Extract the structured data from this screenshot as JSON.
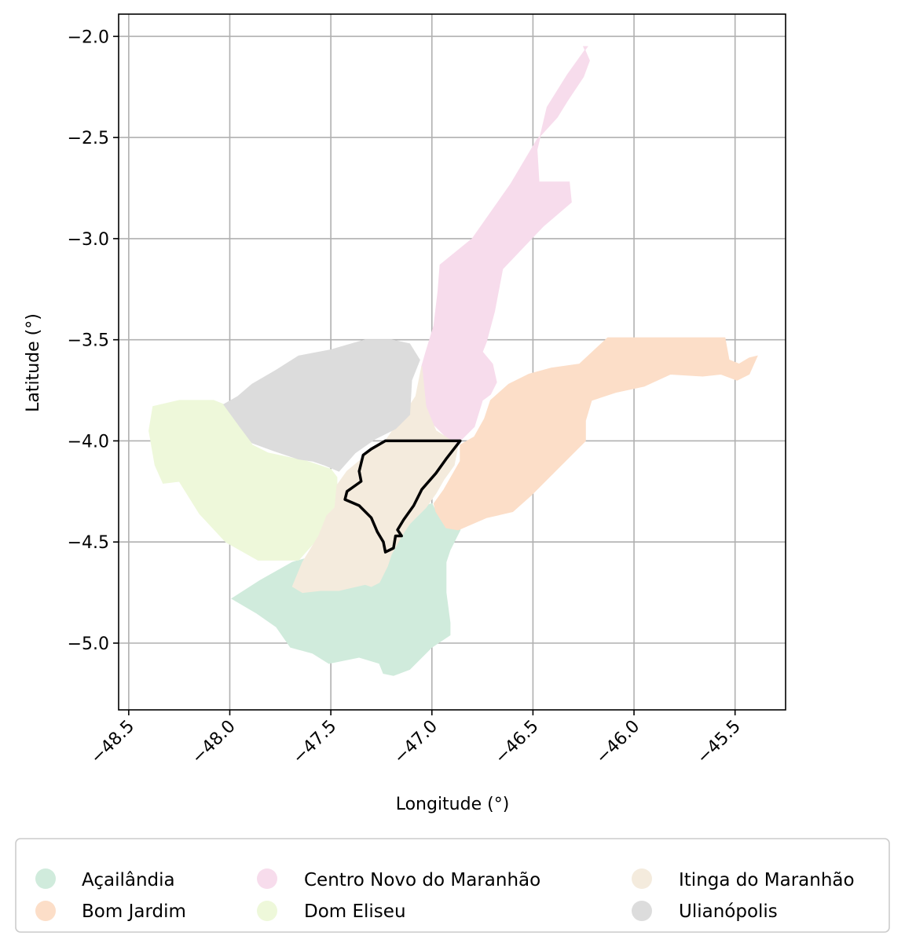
{
  "map": {
    "xlabel": "Longitude (°)",
    "ylabel": "Latitude (°)",
    "xlim": [
      -48.55,
      -45.25
    ],
    "ylim": [
      -5.33,
      -1.89
    ],
    "xticks": [
      -48.5,
      -48.0,
      -47.5,
      -47.0,
      -46.5,
      -46.0,
      -45.5
    ],
    "yticks": [
      -2.0,
      -2.5,
      -3.0,
      -3.5,
      -4.0,
      -4.5,
      -5.0
    ],
    "xtick_labels": [
      "−48.5",
      "−48.0",
      "−47.5",
      "−47.0",
      "−46.5",
      "−46.0",
      "−45.5"
    ],
    "ytick_labels": [
      "−2.0",
      "−2.5",
      "−3.0",
      "−3.5",
      "−4.0",
      "−4.5",
      "−5.0"
    ],
    "grid": true,
    "legend_placement": "bottom-center, 3 columns",
    "highlight_outline_color": "#000000",
    "regions": [
      {
        "name": "Açailândia",
        "color": "#d0ebdc",
        "polygon": [
          [
            -47.99,
            -4.78
          ],
          [
            -47.85,
            -4.69
          ],
          [
            -47.69,
            -4.6
          ],
          [
            -47.62,
            -4.58
          ],
          [
            -47.55,
            -4.56
          ],
          [
            -47.52,
            -4.63
          ],
          [
            -47.47,
            -4.65
          ],
          [
            -47.42,
            -4.64
          ],
          [
            -47.35,
            -4.65
          ],
          [
            -47.26,
            -4.7
          ],
          [
            -47.22,
            -4.58
          ],
          [
            -47.2,
            -4.53
          ],
          [
            -47.15,
            -4.47
          ],
          [
            -47.11,
            -4.41
          ],
          [
            -47.06,
            -4.34
          ],
          [
            -47.03,
            -4.32
          ],
          [
            -47.0,
            -4.31
          ],
          [
            -46.98,
            -4.35
          ],
          [
            -46.94,
            -4.41
          ],
          [
            -46.88,
            -4.43
          ],
          [
            -46.86,
            -4.44
          ],
          [
            -46.88,
            -4.48
          ],
          [
            -46.91,
            -4.54
          ],
          [
            -46.93,
            -4.6
          ],
          [
            -46.93,
            -4.75
          ],
          [
            -46.91,
            -4.9
          ],
          [
            -46.91,
            -4.96
          ],
          [
            -47.0,
            -5.02
          ],
          [
            -47.11,
            -5.13
          ],
          [
            -47.19,
            -5.16
          ],
          [
            -47.24,
            -5.15
          ],
          [
            -47.26,
            -5.1
          ],
          [
            -47.36,
            -5.07
          ],
          [
            -47.51,
            -5.1
          ],
          [
            -47.59,
            -5.05
          ],
          [
            -47.7,
            -5.02
          ],
          [
            -47.77,
            -4.92
          ],
          [
            -47.87,
            -4.85
          ]
        ]
      },
      {
        "name": "Bom Jardim",
        "color": "#fcdec8",
        "polygon": [
          [
            -46.86,
            -4.02
          ],
          [
            -46.79,
            -3.98
          ],
          [
            -46.74,
            -3.89
          ],
          [
            -46.71,
            -3.8
          ],
          [
            -46.62,
            -3.72
          ],
          [
            -46.52,
            -3.67
          ],
          [
            -46.41,
            -3.64
          ],
          [
            -46.27,
            -3.62
          ],
          [
            -46.13,
            -3.49
          ],
          [
            -45.55,
            -3.49
          ],
          [
            -45.53,
            -3.6
          ],
          [
            -45.48,
            -3.62
          ],
          [
            -45.43,
            -3.59
          ],
          [
            -45.39,
            -3.58
          ],
          [
            -45.43,
            -3.67
          ],
          [
            -45.49,
            -3.7
          ],
          [
            -45.57,
            -3.67
          ],
          [
            -45.66,
            -3.68
          ],
          [
            -45.82,
            -3.67
          ],
          [
            -45.95,
            -3.73
          ],
          [
            -46.09,
            -3.76
          ],
          [
            -46.21,
            -3.8
          ],
          [
            -46.24,
            -3.9
          ],
          [
            -46.24,
            -4.0
          ],
          [
            -46.33,
            -4.09
          ],
          [
            -46.42,
            -4.18
          ],
          [
            -46.51,
            -4.27
          ],
          [
            -46.6,
            -4.35
          ],
          [
            -46.73,
            -4.38
          ],
          [
            -46.87,
            -4.44
          ],
          [
            -46.93,
            -4.43
          ],
          [
            -46.98,
            -4.35
          ],
          [
            -46.99,
            -4.31
          ],
          [
            -46.94,
            -4.24
          ],
          [
            -46.9,
            -4.17
          ],
          [
            -46.86,
            -4.1
          ]
        ]
      },
      {
        "name": "Centro Novo do Maranhão",
        "color": "#f7dcec",
        "polygon": [
          [
            -46.23,
            -2.05
          ],
          [
            -46.33,
            -2.19
          ],
          [
            -46.43,
            -2.35
          ],
          [
            -46.48,
            -2.56
          ],
          [
            -46.47,
            -2.72
          ],
          [
            -46.32,
            -2.72
          ],
          [
            -46.31,
            -2.82
          ],
          [
            -46.45,
            -2.94
          ],
          [
            -46.65,
            -3.15
          ],
          [
            -46.69,
            -3.36
          ],
          [
            -46.73,
            -3.51
          ],
          [
            -46.75,
            -3.56
          ],
          [
            -46.7,
            -3.62
          ],
          [
            -46.68,
            -3.71
          ],
          [
            -46.71,
            -3.77
          ],
          [
            -46.75,
            -3.8
          ],
          [
            -46.79,
            -3.93
          ],
          [
            -46.86,
            -4.0
          ],
          [
            -46.89,
            -4.02
          ],
          [
            -47.0,
            -3.91
          ],
          [
            -47.02,
            -3.86
          ],
          [
            -47.05,
            -3.75
          ],
          [
            -47.05,
            -3.63
          ],
          [
            -47.03,
            -3.56
          ],
          [
            -46.99,
            -3.43
          ],
          [
            -46.97,
            -3.26
          ],
          [
            -46.96,
            -3.13
          ],
          [
            -46.8,
            -3.0
          ],
          [
            -46.61,
            -2.73
          ],
          [
            -46.48,
            -2.51
          ],
          [
            -46.38,
            -2.4
          ],
          [
            -46.33,
            -2.32
          ],
          [
            -46.25,
            -2.2
          ],
          [
            -46.22,
            -2.12
          ],
          [
            -46.25,
            -2.05
          ]
        ]
      },
      {
        "name": "Dom Eliseu",
        "color": "#eef8da",
        "polygon": [
          [
            -48.38,
            -3.83
          ],
          [
            -48.4,
            -3.95
          ],
          [
            -48.37,
            -4.12
          ],
          [
            -48.33,
            -4.21
          ],
          [
            -48.25,
            -4.2
          ],
          [
            -48.15,
            -4.36
          ],
          [
            -48.02,
            -4.5
          ],
          [
            -47.86,
            -4.59
          ],
          [
            -47.76,
            -4.59
          ],
          [
            -47.66,
            -4.59
          ],
          [
            -47.58,
            -4.5
          ],
          [
            -47.53,
            -4.43
          ],
          [
            -47.47,
            -4.34
          ],
          [
            -47.47,
            -4.18
          ],
          [
            -47.5,
            -4.14
          ],
          [
            -47.62,
            -4.1
          ],
          [
            -47.81,
            -4.06
          ],
          [
            -47.89,
            -4.02
          ],
          [
            -47.98,
            -3.84
          ],
          [
            -48.08,
            -3.8
          ],
          [
            -48.25,
            -3.8
          ]
        ]
      },
      {
        "name": "Itinga do Maranhão",
        "color": "#f4ebdd",
        "polygon": [
          [
            -47.48,
            -4.33
          ],
          [
            -47.52,
            -4.37
          ],
          [
            -47.56,
            -4.47
          ],
          [
            -47.64,
            -4.6
          ],
          [
            -47.69,
            -4.72
          ],
          [
            -47.64,
            -4.75
          ],
          [
            -47.55,
            -4.74
          ],
          [
            -47.46,
            -4.74
          ],
          [
            -47.33,
            -4.71
          ],
          [
            -47.3,
            -4.72
          ],
          [
            -47.26,
            -4.7
          ],
          [
            -47.22,
            -4.62
          ],
          [
            -47.2,
            -4.56
          ],
          [
            -47.15,
            -4.47
          ],
          [
            -47.11,
            -4.41
          ],
          [
            -47.03,
            -4.33
          ],
          [
            -46.98,
            -4.26
          ],
          [
            -46.94,
            -4.19
          ],
          [
            -46.89,
            -4.12
          ],
          [
            -46.87,
            -4.02
          ],
          [
            -46.98,
            -3.95
          ],
          [
            -47.03,
            -3.83
          ],
          [
            -47.04,
            -3.73
          ],
          [
            -47.05,
            -3.63
          ],
          [
            -47.08,
            -3.78
          ],
          [
            -47.16,
            -3.9
          ],
          [
            -47.23,
            -4.0
          ],
          [
            -47.3,
            -4.04
          ],
          [
            -47.36,
            -4.1
          ],
          [
            -47.42,
            -4.15
          ],
          [
            -47.47,
            -4.22
          ]
        ]
      },
      {
        "name": "Ulianópolis",
        "color": "#dcdcdc",
        "polygon": [
          [
            -48.03,
            -3.82
          ],
          [
            -47.96,
            -3.78
          ],
          [
            -47.89,
            -3.72
          ],
          [
            -47.77,
            -3.65
          ],
          [
            -47.66,
            -3.58
          ],
          [
            -47.5,
            -3.55
          ],
          [
            -47.33,
            -3.5
          ],
          [
            -47.2,
            -3.5
          ],
          [
            -47.11,
            -3.52
          ],
          [
            -47.06,
            -3.6
          ],
          [
            -47.1,
            -3.7
          ],
          [
            -47.11,
            -3.87
          ],
          [
            -47.18,
            -3.94
          ],
          [
            -47.28,
            -3.99
          ],
          [
            -47.38,
            -4.06
          ],
          [
            -47.46,
            -4.15
          ],
          [
            -47.53,
            -4.12
          ],
          [
            -47.59,
            -4.1
          ],
          [
            -47.66,
            -4.09
          ],
          [
            -47.78,
            -4.05
          ],
          [
            -47.89,
            -4.01
          ],
          [
            -47.95,
            -3.93
          ]
        ]
      }
    ],
    "highlight_outline": [
      [
        -47.23,
        -4.0
      ],
      [
        -47.3,
        -4.04
      ],
      [
        -47.34,
        -4.07
      ],
      [
        -47.36,
        -4.15
      ],
      [
        -47.35,
        -4.2
      ],
      [
        -47.42,
        -4.25
      ],
      [
        -47.43,
        -4.29
      ],
      [
        -47.36,
        -4.32
      ],
      [
        -47.3,
        -4.38
      ],
      [
        -47.27,
        -4.45
      ],
      [
        -47.24,
        -4.5
      ],
      [
        -47.23,
        -4.55
      ],
      [
        -47.19,
        -4.53
      ],
      [
        -47.18,
        -4.47
      ],
      [
        -47.15,
        -4.47
      ],
      [
        -47.17,
        -4.44
      ],
      [
        -47.14,
        -4.39
      ],
      [
        -47.09,
        -4.32
      ],
      [
        -47.05,
        -4.24
      ],
      [
        -46.98,
        -4.16
      ],
      [
        -46.93,
        -4.09
      ],
      [
        -46.86,
        -4.0
      ],
      [
        -47.23,
        -4.0
      ]
    ]
  },
  "legend": {
    "items": [
      {
        "label": "Açailândia",
        "color": "#d0ebdc"
      },
      {
        "label": "Centro Novo do Maranhão",
        "color": "#f7dcec"
      },
      {
        "label": "Itinga do Maranhão",
        "color": "#f4ebdd"
      },
      {
        "label": "Bom Jardim",
        "color": "#fcdec8"
      },
      {
        "label": "Dom Eliseu",
        "color": "#eef8da"
      },
      {
        "label": "Ulianópolis",
        "color": "#dcdcdc"
      }
    ]
  }
}
